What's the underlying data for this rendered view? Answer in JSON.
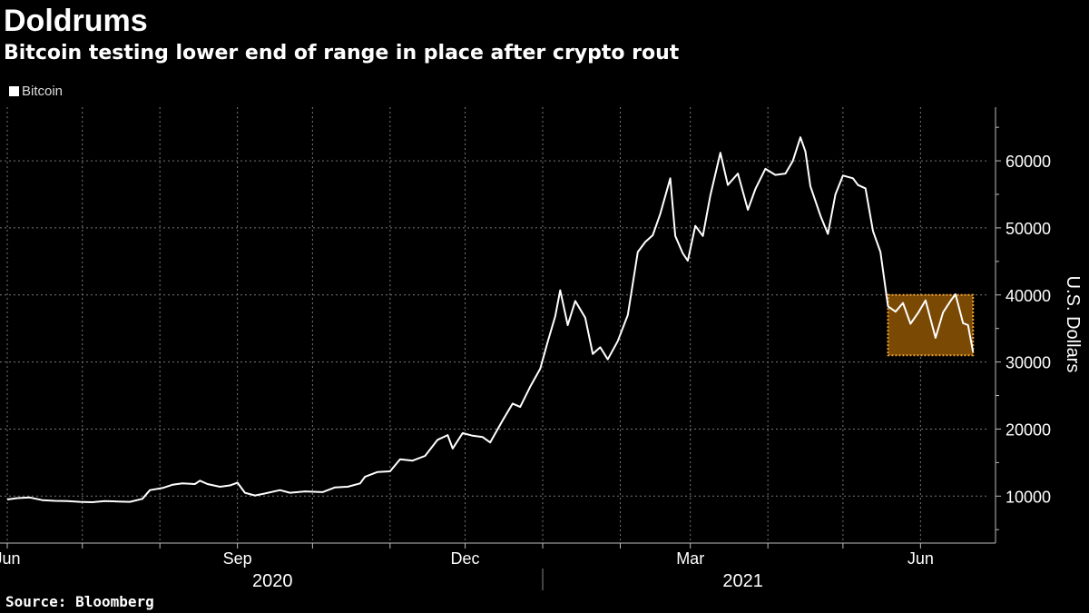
{
  "chart_data": {
    "type": "line",
    "title": "Doldrums",
    "subtitle": "Bitcoin testing lower end of range in place after crypto rout",
    "ylabel": "U.S. Dollars",
    "source": "Source: Bloomberg",
    "ylim": [
      3000,
      68000
    ],
    "yticks": [
      10000,
      20000,
      30000,
      40000,
      50000,
      60000
    ],
    "xlim": [
      "2020-06-01",
      "2021-06-23"
    ],
    "month_ticks": [
      "2020-06-01",
      "2020-07-01",
      "2020-08-01",
      "2020-09-01",
      "2020-10-01",
      "2020-11-01",
      "2020-12-01",
      "2021-01-01",
      "2021-02-01",
      "2021-03-01",
      "2021-04-01",
      "2021-05-01",
      "2021-06-01"
    ],
    "x_labels": [
      {
        "date": "2020-06-01",
        "label": "Jun"
      },
      {
        "date": "2020-09-01",
        "label": "Sep"
      },
      {
        "date": "2020-12-01",
        "label": "Dec"
      },
      {
        "date": "2021-03-01",
        "label": "Mar"
      },
      {
        "date": "2021-06-01",
        "label": "Jun"
      }
    ],
    "years": [
      {
        "label": "2020",
        "center": "2020-09-15"
      },
      {
        "label": "2021",
        "center": "2021-03-22"
      }
    ],
    "year_divider": "2021-01-01",
    "grid": true,
    "legend": "top-left",
    "highlight": {
      "x_start": "2021-05-19",
      "x_end": "2021-06-22",
      "y_low": 31000,
      "y_high": 40000,
      "color": "#7a4a05",
      "border": "#f0a030"
    },
    "series": [
      {
        "name": "Bitcoin",
        "color": "#ffffff",
        "points": [
          [
            "2020-06-01",
            9500
          ],
          [
            "2020-06-05",
            9700
          ],
          [
            "2020-06-10",
            9800
          ],
          [
            "2020-06-15",
            9400
          ],
          [
            "2020-06-20",
            9300
          ],
          [
            "2020-06-25",
            9250
          ],
          [
            "2020-06-30",
            9150
          ],
          [
            "2020-07-05",
            9100
          ],
          [
            "2020-07-10",
            9250
          ],
          [
            "2020-07-15",
            9200
          ],
          [
            "2020-07-20",
            9150
          ],
          [
            "2020-07-25",
            9600
          ],
          [
            "2020-07-28",
            10900
          ],
          [
            "2020-08-02",
            11200
          ],
          [
            "2020-08-06",
            11700
          ],
          [
            "2020-08-10",
            11900
          ],
          [
            "2020-08-15",
            11800
          ],
          [
            "2020-08-17",
            12300
          ],
          [
            "2020-08-20",
            11800
          ],
          [
            "2020-08-25",
            11400
          ],
          [
            "2020-08-29",
            11600
          ],
          [
            "2020-09-01",
            12000
          ],
          [
            "2020-09-04",
            10500
          ],
          [
            "2020-09-08",
            10100
          ],
          [
            "2020-09-12",
            10400
          ],
          [
            "2020-09-18",
            10900
          ],
          [
            "2020-09-22",
            10500
          ],
          [
            "2020-09-28",
            10700
          ],
          [
            "2020-10-05",
            10600
          ],
          [
            "2020-10-10",
            11300
          ],
          [
            "2020-10-15",
            11400
          ],
          [
            "2020-10-20",
            11900
          ],
          [
            "2020-10-22",
            12900
          ],
          [
            "2020-10-27",
            13600
          ],
          [
            "2020-11-01",
            13700
          ],
          [
            "2020-11-05",
            15500
          ],
          [
            "2020-11-10",
            15300
          ],
          [
            "2020-11-15",
            16000
          ],
          [
            "2020-11-20",
            18400
          ],
          [
            "2020-11-24",
            19100
          ],
          [
            "2020-11-26",
            17100
          ],
          [
            "2020-11-30",
            19400
          ],
          [
            "2020-12-04",
            19000
          ],
          [
            "2020-12-08",
            18800
          ],
          [
            "2020-12-11",
            18000
          ],
          [
            "2020-12-16",
            21300
          ],
          [
            "2020-12-20",
            23800
          ],
          [
            "2020-12-23",
            23300
          ],
          [
            "2020-12-27",
            26300
          ],
          [
            "2020-12-31",
            29000
          ],
          [
            "2021-01-03",
            33000
          ],
          [
            "2021-01-06",
            36800
          ],
          [
            "2021-01-08",
            40700
          ],
          [
            "2021-01-11",
            35500
          ],
          [
            "2021-01-14",
            39100
          ],
          [
            "2021-01-18",
            36600
          ],
          [
            "2021-01-21",
            31200
          ],
          [
            "2021-01-24",
            32200
          ],
          [
            "2021-01-27",
            30400
          ],
          [
            "2021-01-31",
            33100
          ],
          [
            "2021-02-04",
            37000
          ],
          [
            "2021-02-08",
            46400
          ],
          [
            "2021-02-11",
            47900
          ],
          [
            "2021-02-14",
            48900
          ],
          [
            "2021-02-17",
            52100
          ],
          [
            "2021-02-21",
            57400
          ],
          [
            "2021-02-23",
            48800
          ],
          [
            "2021-02-26",
            46200
          ],
          [
            "2021-02-28",
            45100
          ],
          [
            "2021-03-03",
            50300
          ],
          [
            "2021-03-06",
            48800
          ],
          [
            "2021-03-09",
            54800
          ],
          [
            "2021-03-13",
            61200
          ],
          [
            "2021-03-16",
            56400
          ],
          [
            "2021-03-20",
            58100
          ],
          [
            "2021-03-24",
            52700
          ],
          [
            "2021-03-27",
            55800
          ],
          [
            "2021-03-31",
            58800
          ],
          [
            "2021-04-04",
            57900
          ],
          [
            "2021-04-08",
            58100
          ],
          [
            "2021-04-11",
            60000
          ],
          [
            "2021-04-14",
            63500
          ],
          [
            "2021-04-16",
            61400
          ],
          [
            "2021-04-18",
            56200
          ],
          [
            "2021-04-22",
            51800
          ],
          [
            "2021-04-25",
            49100
          ],
          [
            "2021-04-28",
            55000
          ],
          [
            "2021-05-01",
            57800
          ],
          [
            "2021-05-05",
            57400
          ],
          [
            "2021-05-07",
            56400
          ],
          [
            "2021-05-10",
            55900
          ],
          [
            "2021-05-13",
            49500
          ],
          [
            "2021-05-16",
            46400
          ],
          [
            "2021-05-19",
            38300
          ],
          [
            "2021-05-22",
            37500
          ],
          [
            "2021-05-25",
            38800
          ],
          [
            "2021-05-28",
            35700
          ],
          [
            "2021-05-31",
            37300
          ],
          [
            "2021-06-03",
            39200
          ],
          [
            "2021-06-07",
            33600
          ],
          [
            "2021-06-10",
            37400
          ],
          [
            "2021-06-13",
            39100
          ],
          [
            "2021-06-15",
            40100
          ],
          [
            "2021-06-18",
            35800
          ],
          [
            "2021-06-20",
            35500
          ],
          [
            "2021-06-22",
            31500
          ]
        ]
      }
    ]
  }
}
